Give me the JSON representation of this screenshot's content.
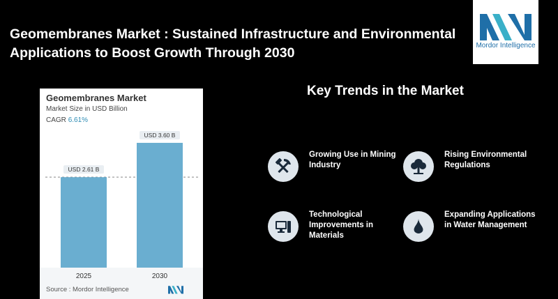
{
  "header": {
    "headline_line1": "Geomembranes Market : Sustained Infrastructure and Environmental",
    "headline_line2": "Applications to Boost Growth Through 2030"
  },
  "logo": {
    "text": "Mordor Intelligence",
    "color": "#1f6fa8"
  },
  "card": {
    "title": "Geomembranes Market",
    "subtitle": "Market Size in USD Billion",
    "cagr_label": "CAGR",
    "cagr_value": "6.61%",
    "source": "Source : Mordor Intelligence"
  },
  "chart_data": {
    "type": "bar",
    "title": "Geomembranes Market",
    "ylabel": "Market Size in USD Billion",
    "categories": [
      "2025",
      "2030"
    ],
    "values": [
      2.61,
      3.6
    ],
    "data_labels": [
      "USD 2.61 B",
      "USD 3.60 B"
    ],
    "ylim": [
      0,
      3.8
    ],
    "grid": false,
    "reference_line": 2.61,
    "bar_color": "#6aaed0"
  },
  "trends": {
    "title": "Key Trends in the Market",
    "items": [
      {
        "label": "Growing Use in Mining Industry",
        "icon": "hammer-pick-icon"
      },
      {
        "label": "Rising Environmental Regulations",
        "icon": "tree-icon"
      },
      {
        "label": "Technological Improvements in Materials",
        "icon": "computer-icon"
      },
      {
        "label": "Expanding Applications in Water Management",
        "icon": "water-drop-icon"
      }
    ]
  }
}
